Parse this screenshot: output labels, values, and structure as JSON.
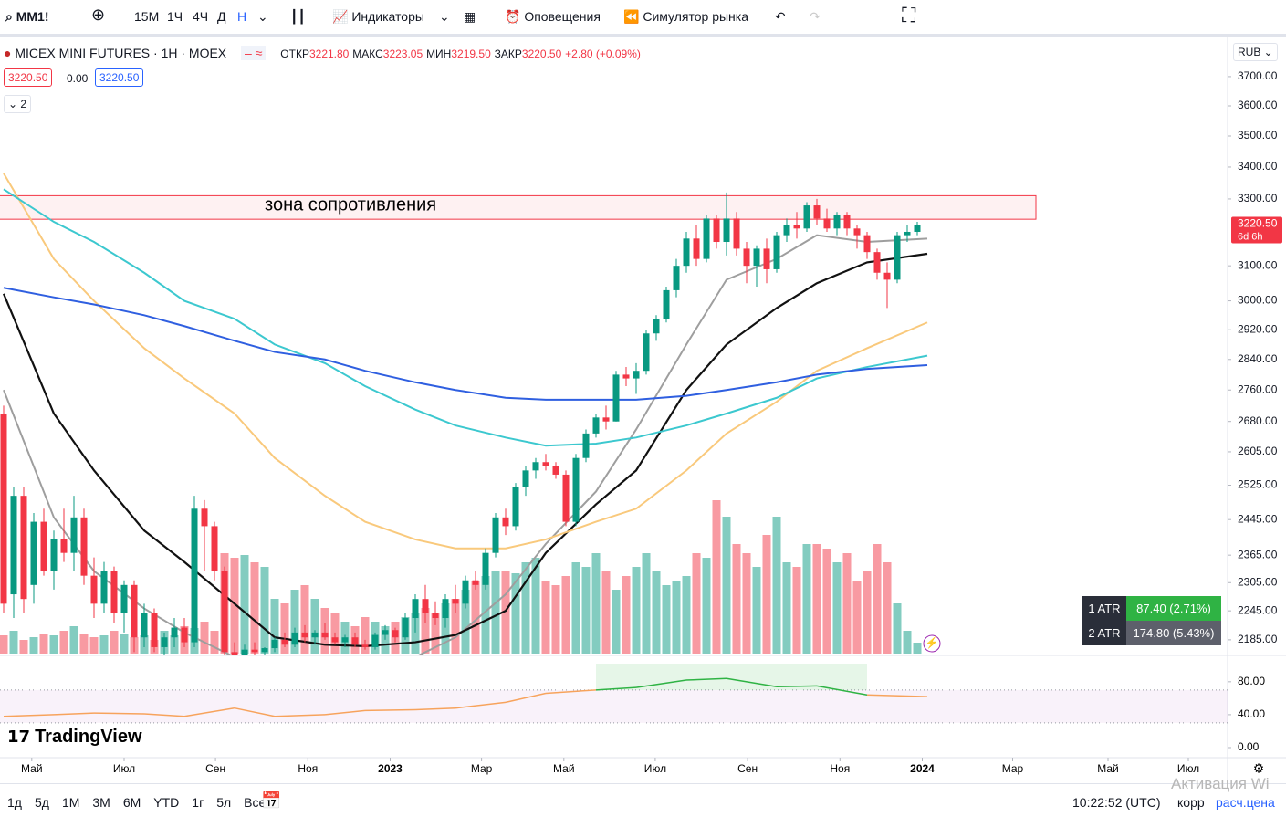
{
  "toolbar": {
    "symbol": "MM1!",
    "intervals": [
      "15М",
      "1Ч",
      "4Ч",
      "Д",
      "Н"
    ],
    "indicators": "Индикаторы",
    "alerts": "Оповещения",
    "simulator": "Симулятор рынка"
  },
  "legend": {
    "title": "MICEX MINI FUTURES · 1H · MOEX",
    "open_label": "ОТКР",
    "open": "3221.80",
    "high_label": "МАКС",
    "high": "3223.05",
    "low_label": "МИН",
    "low": "3219.50",
    "close_label": "ЗАКР",
    "close": "3220.50",
    "change": "+2.80 (+0.09%)",
    "bid": "3220.50",
    "spread": "0.00",
    "ask": "3220.50",
    "collapsed": "2"
  },
  "currency": "RUB",
  "logo": "TradingView",
  "watermark": "Активация Wi",
  "atr": {
    "rows": [
      [
        "1 ATR",
        "87.40 (2.71%)"
      ],
      [
        "2 ATR",
        "174.80 (5.43%)"
      ]
    ]
  },
  "bottom_bar": {
    "ranges": [
      "1д",
      "5д",
      "1М",
      "3М",
      "6М",
      "YTD",
      "1г",
      "5л",
      "Все"
    ],
    "clock": "10:22:52 (UTC)",
    "adj": "корр",
    "settle": "расч.цена"
  },
  "chart_data": {
    "type": "candlestick",
    "log_scale": true,
    "ylim": [
      2157,
      3825
    ],
    "yticks": [
      {
        "value": 3700,
        "label": "3700.00"
      },
      {
        "value": 3600,
        "label": "3600.00"
      },
      {
        "value": 3500,
        "label": "3500.00"
      },
      {
        "value": 3400,
        "label": "3400.00"
      },
      {
        "value": 3300,
        "label": "3300.00"
      },
      {
        "value": 3100,
        "label": "3100.00"
      },
      {
        "value": 3000,
        "label": "3000.00"
      },
      {
        "value": 2920,
        "label": "2920.00"
      },
      {
        "value": 2840,
        "label": "2840.00"
      },
      {
        "value": 2760,
        "label": "2760.00"
      },
      {
        "value": 2680,
        "label": "2680.00"
      },
      {
        "value": 2605,
        "label": "2605.00"
      },
      {
        "value": 2525,
        "label": "2525.00"
      },
      {
        "value": 2445,
        "label": "2445.00"
      },
      {
        "value": 2365,
        "label": "2365.00"
      },
      {
        "value": 2305,
        "label": "2305.00"
      },
      {
        "value": 2245,
        "label": "2245.00"
      },
      {
        "value": 2185,
        "label": "2185.00"
      }
    ],
    "xticks": [
      {
        "value": 2.8,
        "label": "Май"
      },
      {
        "value": 12,
        "label": "Июл"
      },
      {
        "value": 21.1,
        "label": "Сен"
      },
      {
        "value": 30.3,
        "label": "Ноя"
      },
      {
        "value": 38.5,
        "label": "2023"
      },
      {
        "value": 47.6,
        "label": "Мар"
      },
      {
        "value": 55.8,
        "label": "Май"
      },
      {
        "value": 64.9,
        "label": "Июл"
      },
      {
        "value": 74.1,
        "label": "Сен"
      },
      {
        "value": 83.3,
        "label": "Ноя"
      },
      {
        "value": 91.5,
        "label": "2024"
      },
      {
        "value": 100.5,
        "label": "Мар"
      },
      {
        "value": 110,
        "label": "Май"
      },
      {
        "value": 118,
        "label": "Июл"
      }
    ],
    "last_price": 3220.5,
    "countdown": "6d 6h",
    "up_color": "#089981",
    "down_color": "#f23645",
    "zone": {
      "label": "зона сопротивления",
      "top": 3310,
      "bottom": 3238
    },
    "candles": [
      [
        2700,
        2720,
        2240,
        2260
      ],
      [
        2280,
        2520,
        2230,
        2500
      ],
      [
        2500,
        2520,
        2240,
        2270
      ],
      [
        2300,
        2460,
        2260,
        2440
      ],
      [
        2440,
        2470,
        2320,
        2330
      ],
      [
        2330,
        2420,
        2290,
        2400
      ],
      [
        2400,
        2470,
        2350,
        2370
      ],
      [
        2370,
        2500,
        2330,
        2450
      ],
      [
        2450,
        2470,
        2300,
        2320
      ],
      [
        2320,
        2360,
        2230,
        2260
      ],
      [
        2260,
        2350,
        2240,
        2330
      ],
      [
        2330,
        2340,
        2220,
        2240
      ],
      [
        2240,
        2310,
        2200,
        2300
      ],
      [
        2300,
        2310,
        2160,
        2190
      ],
      [
        2190,
        2260,
        2170,
        2240
      ],
      [
        2240,
        2250,
        2160,
        2170
      ],
      [
        2170,
        2200,
        2150,
        2190
      ],
      [
        2190,
        2230,
        2170,
        2210
      ],
      [
        2210,
        2230,
        2170,
        2180
      ],
      [
        2180,
        2500,
        2170,
        2470
      ],
      [
        2470,
        2490,
        2330,
        2430
      ],
      [
        2430,
        2440,
        2310,
        2330
      ],
      [
        2330,
        2340,
        2150,
        2160
      ],
      [
        2160,
        2180,
        2140,
        2150
      ],
      [
        2150,
        2175,
        2140,
        2165
      ],
      [
        2165,
        2180,
        2150,
        2160
      ],
      [
        2160,
        2170,
        2145,
        2168
      ],
      [
        2168,
        2190,
        2160,
        2185
      ],
      [
        2185,
        2200,
        2170,
        2175
      ],
      [
        2175,
        2210,
        2170,
        2200
      ],
      [
        2200,
        2215,
        2180,
        2190
      ],
      [
        2190,
        2205,
        2175,
        2200
      ],
      [
        2200,
        2220,
        2185,
        2190
      ],
      [
        2190,
        2200,
        2175,
        2180
      ],
      [
        2180,
        2195,
        2170,
        2190
      ],
      [
        2190,
        2200,
        2170,
        2175
      ],
      [
        2175,
        2185,
        2165,
        2170
      ],
      [
        2170,
        2200,
        2165,
        2195
      ],
      [
        2195,
        2215,
        2185,
        2205
      ],
      [
        2205,
        2210,
        2180,
        2190
      ],
      [
        2190,
        2240,
        2185,
        2230
      ],
      [
        2230,
        2280,
        2200,
        2270
      ],
      [
        2270,
        2300,
        2220,
        2240
      ],
      [
        2240,
        2265,
        2215,
        2230
      ],
      [
        2230,
        2280,
        2210,
        2270
      ],
      [
        2270,
        2300,
        2240,
        2260
      ],
      [
        2260,
        2320,
        2250,
        2310
      ],
      [
        2310,
        2330,
        2290,
        2300
      ],
      [
        2300,
        2380,
        2290,
        2370
      ],
      [
        2370,
        2460,
        2360,
        2450
      ],
      [
        2450,
        2470,
        2410,
        2430
      ],
      [
        2430,
        2530,
        2420,
        2520
      ],
      [
        2520,
        2570,
        2500,
        2560
      ],
      [
        2560,
        2590,
        2540,
        2580
      ],
      [
        2580,
        2600,
        2560,
        2570
      ],
      [
        2570,
        2580,
        2540,
        2550
      ],
      [
        2550,
        2560,
        2430,
        2440
      ],
      [
        2440,
        2600,
        2430,
        2590
      ],
      [
        2590,
        2660,
        2580,
        2650
      ],
      [
        2650,
        2700,
        2640,
        2690
      ],
      [
        2690,
        2720,
        2660,
        2680
      ],
      [
        2680,
        2810,
        2680,
        2800
      ],
      [
        2800,
        2820,
        2770,
        2790
      ],
      [
        2790,
        2830,
        2750,
        2810
      ],
      [
        2810,
        2920,
        2800,
        2910
      ],
      [
        2910,
        2960,
        2890,
        2950
      ],
      [
        2950,
        3040,
        2940,
        3030
      ],
      [
        3030,
        3120,
        3010,
        3100
      ],
      [
        3100,
        3200,
        3080,
        3180
      ],
      [
        3180,
        3220,
        3100,
        3120
      ],
      [
        3120,
        3250,
        3110,
        3240
      ],
      [
        3240,
        3250,
        3150,
        3170
      ],
      [
        3170,
        3320,
        3130,
        3240
      ],
      [
        3240,
        3260,
        3130,
        3150
      ],
      [
        3150,
        3170,
        3050,
        3100
      ],
      [
        3100,
        3160,
        3040,
        3150
      ],
      [
        3150,
        3180,
        3050,
        3090
      ],
      [
        3090,
        3200,
        3080,
        3190
      ],
      [
        3190,
        3240,
        3170,
        3220
      ],
      [
        3220,
        3260,
        3180,
        3210
      ],
      [
        3210,
        3290,
        3200,
        3280
      ],
      [
        3280,
        3300,
        3220,
        3240
      ],
      [
        3240,
        3270,
        3200,
        3210
      ],
      [
        3210,
        3260,
        3190,
        3250
      ],
      [
        3250,
        3260,
        3190,
        3210
      ],
      [
        3210,
        3220,
        3150,
        3190
      ],
      [
        3190,
        3200,
        3120,
        3140
      ],
      [
        3140,
        3150,
        3060,
        3080
      ],
      [
        3080,
        3110,
        2980,
        3060
      ],
      [
        3060,
        3200,
        3050,
        3190
      ],
      [
        3190,
        3220,
        3170,
        3200
      ],
      [
        3200,
        3230,
        3190,
        3220
      ]
    ],
    "volume_lim": [
      0,
      170
    ],
    "volume": [
      20,
      25,
      15,
      18,
      22,
      20,
      25,
      30,
      22,
      18,
      20,
      25,
      22,
      18,
      20,
      15,
      25,
      20,
      30,
      28,
      35,
      25,
      110,
      105,
      108,
      100,
      95,
      60,
      55,
      70,
      75,
      60,
      50,
      45,
      35,
      30,
      40,
      35,
      30,
      35,
      40,
      45,
      50,
      45,
      55,
      60,
      70,
      80,
      85,
      90,
      90,
      88,
      100,
      105,
      80,
      75,
      85,
      100,
      95,
      110,
      90,
      70,
      85,
      95,
      110,
      90,
      75,
      80,
      85,
      110,
      105,
      168,
      150,
      120,
      110,
      95,
      130,
      150,
      100,
      95,
      120,
      120,
      115,
      100,
      110,
      80,
      90,
      120,
      100,
      55,
      25,
      12
    ],
    "ma_index": [
      0,
      5,
      9,
      14,
      18,
      23,
      27,
      32,
      36,
      41,
      45,
      50,
      54,
      59,
      63,
      68,
      72,
      77,
      81,
      86,
      92
    ],
    "series": [
      {
        "color": "#9e9e9e",
        "values": [
          2760,
          2450,
          2330,
          2250,
          2200,
          2150,
          2120,
          2100,
          2110,
          2150,
          2190,
          2280,
          2390,
          2510,
          2660,
          2880,
          3060,
          3120,
          3190,
          3170,
          3180
        ]
      },
      {
        "color": "#111111",
        "values": [
          3020,
          2700,
          2560,
          2420,
          2350,
          2260,
          2190,
          2175,
          2172,
          2180,
          2195,
          2245,
          2370,
          2480,
          2560,
          2760,
          2880,
          2980,
          3050,
          3110,
          3135
        ]
      },
      {
        "color": "#f9c97c",
        "values": [
          3380,
          3120,
          3000,
          2870,
          2790,
          2700,
          2590,
          2500,
          2440,
          2400,
          2380,
          2380,
          2400,
          2440,
          2470,
          2560,
          2650,
          2730,
          2810,
          2870,
          2940
        ]
      },
      {
        "color": "#3cc8cf",
        "values": [
          3330,
          3230,
          3170,
          3080,
          3000,
          2950,
          2880,
          2830,
          2770,
          2710,
          2670,
          2640,
          2620,
          2625,
          2640,
          2670,
          2700,
          2740,
          2790,
          2820,
          2850
        ]
      },
      {
        "color": "#2f5fe0",
        "values": [
          3037,
          3010,
          2990,
          2960,
          2930,
          2890,
          2860,
          2840,
          2810,
          2780,
          2760,
          2740,
          2735,
          2735,
          2735,
          2745,
          2760,
          2780,
          2800,
          2815,
          2825
        ]
      }
    ],
    "rsi": {
      "ylim": [
        -10,
        102
      ],
      "yticks": [
        {
          "value": 80,
          "label": "80.00"
        },
        {
          "value": 40,
          "label": "40.00"
        },
        {
          "value": 0,
          "label": "0.00"
        }
      ],
      "upper": 70,
      "lower": 30,
      "color": "#f7a35c",
      "hot_color": "#2fb344",
      "values": [
        38,
        40,
        42,
        41,
        38,
        48,
        38,
        40,
        45,
        46,
        48,
        55,
        66,
        70,
        73,
        82,
        84,
        74,
        75,
        64,
        62
      ]
    }
  }
}
